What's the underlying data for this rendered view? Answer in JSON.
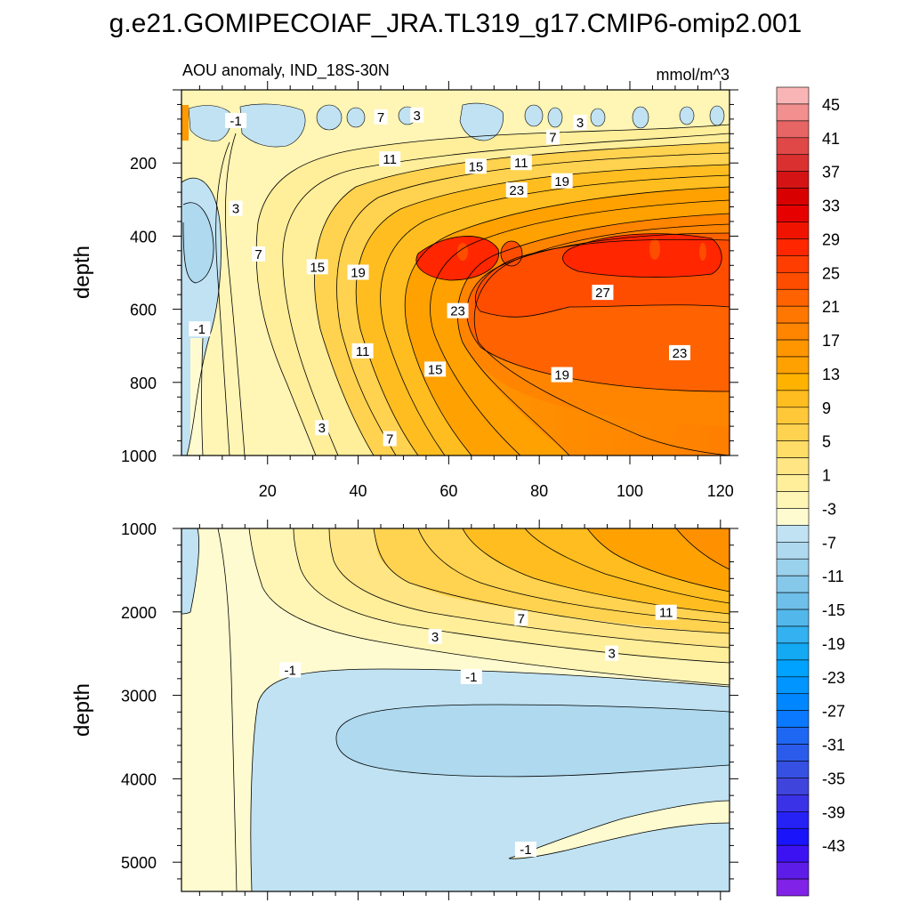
{
  "figure": {
    "title": "g.e21.GOMIPECOIAF_JRA.TL319_g17.CMIP6-omip2.001",
    "left_string": "AOU anomaly, IND_18S-30N",
    "right_string": "mmol/m^3"
  },
  "chart_data": [
    {
      "type": "contour",
      "panel": "upper",
      "x_range": [
        1,
        122
      ],
      "x_ticks": [
        20,
        40,
        60,
        80,
        100,
        120
      ],
      "ylabel": "depth",
      "y_range": [
        0,
        1000
      ],
      "y_reversed": true,
      "y_ticks": [
        200,
        400,
        600,
        800,
        1000
      ],
      "contour_labels": [
        {
          "text": "-1",
          "x": 13,
          "y": 85
        },
        {
          "text": "7",
          "x": 45,
          "y": 75
        },
        {
          "text": "3",
          "x": 53,
          "y": 70
        },
        {
          "text": "3",
          "x": 89,
          "y": 90
        },
        {
          "text": "7",
          "x": 83,
          "y": 130
        },
        {
          "text": "11",
          "x": 47,
          "y": 190
        },
        {
          "text": "15",
          "x": 66,
          "y": 210
        },
        {
          "text": "11",
          "x": 76,
          "y": 200
        },
        {
          "text": "19",
          "x": 85,
          "y": 250
        },
        {
          "text": "23",
          "x": 75,
          "y": 275
        },
        {
          "text": "3",
          "x": 13,
          "y": 325
        },
        {
          "text": "7",
          "x": 18,
          "y": 450
        },
        {
          "text": "15",
          "x": 31,
          "y": 485
        },
        {
          "text": "19",
          "x": 40,
          "y": 500
        },
        {
          "text": "27",
          "x": 94,
          "y": 555
        },
        {
          "text": "23",
          "x": 62,
          "y": 605
        },
        {
          "text": "-1",
          "x": 5,
          "y": 655
        },
        {
          "text": "11",
          "x": 41,
          "y": 715
        },
        {
          "text": "15",
          "x": 57,
          "y": 765
        },
        {
          "text": "23",
          "x": 111,
          "y": 720
        },
        {
          "text": "19",
          "x": 85,
          "y": 780
        },
        {
          "text": "3",
          "x": 32,
          "y": 925
        },
        {
          "text": "7",
          "x": 47,
          "y": 955
        }
      ]
    },
    {
      "type": "contour",
      "panel": "lower",
      "x_range": [
        1,
        122
      ],
      "ylabel": "depth",
      "y_range": [
        1000,
        5350
      ],
      "y_reversed": true,
      "y_ticks": [
        1000,
        2000,
        3000,
        4000,
        5000
      ],
      "contour_labels": [
        {
          "text": "7",
          "x": 76,
          "y": 2080
        },
        {
          "text": "11",
          "x": 108,
          "y": 2010
        },
        {
          "text": "3",
          "x": 57,
          "y": 2300
        },
        {
          "text": "3",
          "x": 96,
          "y": 2500
        },
        {
          "text": "-1",
          "x": 25,
          "y": 2700
        },
        {
          "text": "-1",
          "x": 65,
          "y": 2780
        },
        {
          "text": "-1",
          "x": 77,
          "y": 4850
        }
      ]
    }
  ],
  "colorbar": {
    "labels": [
      "45",
      "41",
      "37",
      "33",
      "29",
      "25",
      "21",
      "17",
      "13",
      "9",
      "5",
      "1",
      "-3",
      "-7",
      "-11",
      "-15",
      "-19",
      "-23",
      "-27",
      "-31",
      "-35",
      "-39",
      "-43"
    ],
    "colors": [
      "#f9b5b5",
      "#f28f8f",
      "#e76565",
      "#e04848",
      "#db3030",
      "#d41414",
      "#d80000",
      "#e60000",
      "#f01400",
      "#ff2600",
      "#ff3d00",
      "#ff4d00",
      "#ff6200",
      "#ff7700",
      "#ff8400",
      "#ff9600",
      "#ffa100",
      "#ffb300",
      "#ffbd1f",
      "#ffc838",
      "#ffd24f",
      "#ffdd66",
      "#ffe584",
      "#ffee9a",
      "#fff5b5",
      "#fffbd0",
      "#c0e2f2",
      "#aed9ef",
      "#9ad1ec",
      "#85c8ea",
      "#6ebfe9",
      "#52b8ec",
      "#33b1f0",
      "#13a9f3",
      "#00a2ff",
      "#0095ff",
      "#0087ff",
      "#0a78ff",
      "#1d67f2",
      "#2a5bea",
      "#3550e2",
      "#3f44dc",
      "#3a32e6",
      "#2622f5",
      "#1a14fb",
      "#3d12f2",
      "#5e1ce8",
      "#8023e6"
    ]
  }
}
